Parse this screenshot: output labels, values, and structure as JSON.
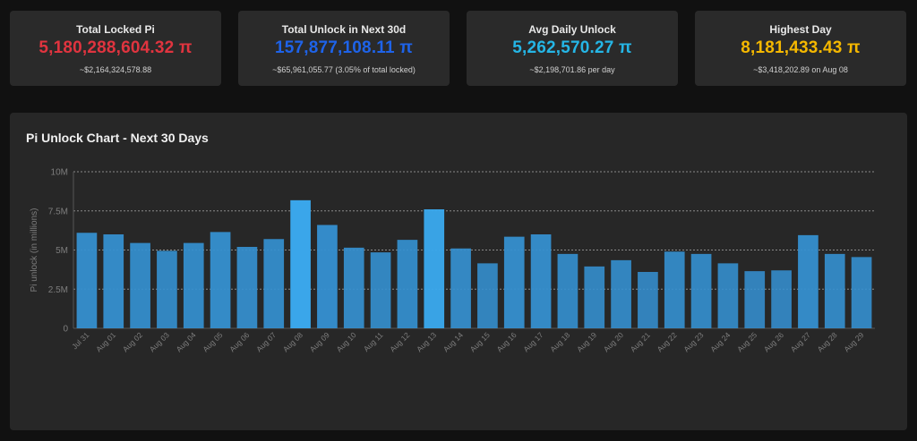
{
  "cards": [
    {
      "label": "Total Locked Pi",
      "value": "5,180,288,604.32 π",
      "sub": "~$2,164,324,578.88",
      "color": "#e0343f"
    },
    {
      "label": "Total Unlock in Next 30d",
      "value": "157,877,108.11 π",
      "sub": "~$65,961,055.77 (3.05% of total locked)",
      "color": "#1e63e9"
    },
    {
      "label": "Avg Daily Unlock",
      "value": "5,262,570.27 π",
      "sub": "~$2,198,701.86 per day",
      "color": "#25b6e6"
    },
    {
      "label": "Highest Day",
      "value": "8,181,433.43 π",
      "sub": "~$3,418,202.89 on Aug 08",
      "color": "#f5b800"
    }
  ],
  "chart_panel": {
    "title": "Pi Unlock Chart - Next 30 Days"
  },
  "chart_data": {
    "type": "bar",
    "title": "Pi Unlock Chart - Next 30 Days",
    "xlabel": "",
    "ylabel": "Pi unlock (in millions)",
    "ylim": [
      0,
      10
    ],
    "yticks": [
      0,
      2.5,
      5,
      7.5,
      10
    ],
    "ytick_labels": [
      "0",
      "2.5M",
      "5M",
      "7.5M",
      "10M"
    ],
    "grid": true,
    "bar_color": "#3590d0",
    "highlight_color": "#3aa6ea",
    "categories": [
      "Jul 31",
      "Aug 01",
      "Aug 02",
      "Aug 03",
      "Aug 04",
      "Aug 05",
      "Aug 06",
      "Aug 07",
      "Aug 08",
      "Aug 09",
      "Aug 10",
      "Aug 11",
      "Aug 12",
      "Aug 13",
      "Aug 14",
      "Aug 15",
      "Aug 16",
      "Aug 17",
      "Aug 18",
      "Aug 19",
      "Aug 20",
      "Aug 21",
      "Aug 22",
      "Aug 23",
      "Aug 24",
      "Aug 25",
      "Aug 26",
      "Aug 27",
      "Aug 28",
      "Aug 29"
    ],
    "values": [
      6.1,
      6.0,
      5.45,
      4.95,
      5.45,
      6.15,
      5.2,
      5.7,
      8.18,
      6.6,
      5.15,
      4.85,
      5.65,
      7.6,
      5.1,
      4.15,
      5.85,
      6.0,
      4.75,
      3.95,
      4.35,
      3.6,
      4.9,
      4.75,
      4.15,
      3.65,
      3.7,
      5.95,
      4.75,
      4.55
    ]
  }
}
